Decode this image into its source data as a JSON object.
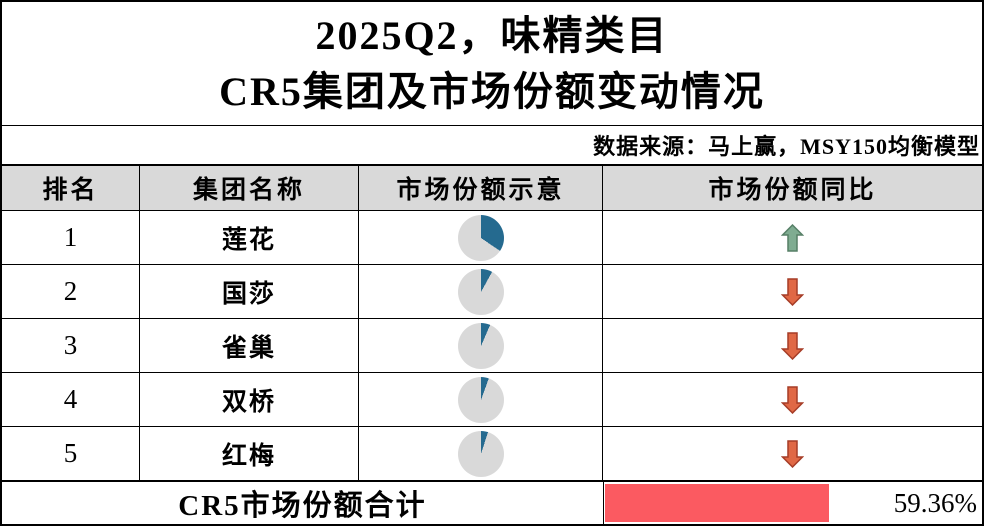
{
  "title": {
    "line1": "2025Q2，味精类目",
    "line2": "CR5集团及市场份额变动情况"
  },
  "source_note": "数据来源：马上赢，MSY150均衡模型",
  "table": {
    "headers": {
      "rank": "排名",
      "group": "集团名称",
      "share": "市场份额示意",
      "yoy": "市场份额同比"
    },
    "rows": [
      {
        "rank": "1",
        "group": "莲花",
        "share_pct_est": 34.5,
        "yoy": "up"
      },
      {
        "rank": "2",
        "group": "国莎",
        "share_pct_est": 8.0,
        "yoy": "down"
      },
      {
        "rank": "3",
        "group": "雀巢",
        "share_pct_est": 6.5,
        "yoy": "down"
      },
      {
        "rank": "4",
        "group": "双桥",
        "share_pct_est": 5.5,
        "yoy": "down"
      },
      {
        "rank": "5",
        "group": "红梅",
        "share_pct_est": 4.9,
        "yoy": "down"
      }
    ],
    "footer": {
      "label": "CR5市场份额合计",
      "total_text": "59.36%",
      "total_pct": 59.36
    }
  },
  "colors": {
    "pie_fill": "#256a8f",
    "pie_rest": "#d9d9d9",
    "header_bg": "#d9d9d9",
    "up_arrow_fill": "#7fac91",
    "up_arrow_border": "#567f66",
    "down_arrow_fill": "#e06845",
    "down_arrow_border": "#a53c26",
    "databar_fill": "#fb5a61",
    "border": "#000000"
  },
  "chart_data": {
    "type": "table",
    "title": "2025Q2，味精类目 CR5集团及市场份额变动情况",
    "source": "数据来源：马上赢，MSY150均衡模型",
    "columns": [
      "排名",
      "集团名称",
      "市场份额示意",
      "市场份额同比"
    ],
    "rows": [
      {
        "rank": 1,
        "group": "莲花",
        "market_share_pct_estimated_from_pie": 34.5,
        "yoy_direction": "up"
      },
      {
        "rank": 2,
        "group": "国莎",
        "market_share_pct_estimated_from_pie": 8.0,
        "yoy_direction": "down"
      },
      {
        "rank": 3,
        "group": "雀巢",
        "market_share_pct_estimated_from_pie": 6.5,
        "yoy_direction": "down"
      },
      {
        "rank": 4,
        "group": "双桥",
        "market_share_pct_estimated_from_pie": 5.5,
        "yoy_direction": "down"
      },
      {
        "rank": 5,
        "group": "红梅",
        "market_share_pct_estimated_from_pie": 4.9,
        "yoy_direction": "down"
      }
    ],
    "cr5_total_market_share_pct": 59.36,
    "notes": "每行市场份额以迷你饼图示意(蓝色扇区)，同比以上/下箭头示意；合计行以红色数据条表示59.36%"
  }
}
